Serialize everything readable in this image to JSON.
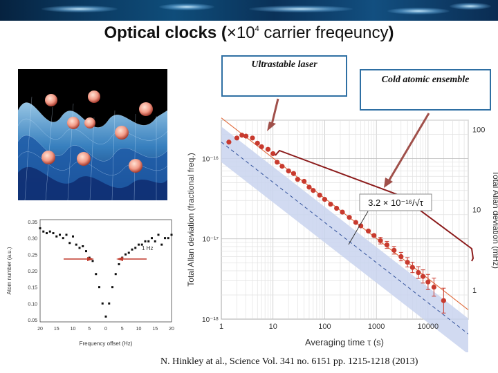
{
  "slide": {
    "title_bold": "Optical clocks",
    "title_paren_open": " (",
    "title_times": "×10",
    "title_exp": "4",
    "title_rest": " carrier freqeuncy",
    "title_paren_close": ")",
    "citation": "N. Hinkley at al., Science Vol. 341 no. 6151 pp. 1215-1218 (2013)"
  },
  "callouts": {
    "laser": "Ultrastable laser",
    "atoms": "Cold atomic ensemble"
  },
  "spectrum_plot": {
    "ytick_labels": [
      "0.35",
      "0.30",
      "0.25",
      "0.20",
      "0.15",
      "0.10",
      "0.05"
    ],
    "xtick_labels": [
      "20",
      "15",
      "10",
      "5",
      "0",
      "5",
      "10",
      "15",
      "20"
    ],
    "ylabel": "Atom number (a.u.)",
    "xlabel": "Frequency offset (Hz)",
    "annotation": "1 Hz"
  },
  "colors": {
    "data_red": "#c83a2e",
    "band_blue": "#c9d3ee",
    "fit_orange": "#e06a3a",
    "dashed_blue": "#30509a",
    "bracket": "#8b1a1a",
    "arrow": "#a0504a",
    "callout_border": "#2e6fa3"
  },
  "chart_data": [
    {
      "type": "scatter",
      "title": "",
      "xlabel": "Averaging time τ (s)",
      "ylabel": "Total Allan deviation (fractional freq.)",
      "ylabel_right": "Total Allan deviation (mHz)",
      "xscale": "log",
      "yscale": "log",
      "xlim": [
        1,
        60000
      ],
      "ylim": [
        1e-18,
        3e-16
      ],
      "xtick_labels": [
        "1",
        "10",
        "100",
        "1000",
        "10000"
      ],
      "ytick_labels": [
        "10⁻¹⁶",
        "10⁻¹⁷",
        "10⁻¹⁸"
      ],
      "right_tick_labels": [
        "100",
        "10",
        "1"
      ],
      "fit_label": "3.2 × 10⁻¹⁶/√τ",
      "series": [
        {
          "name": "Allan deviation",
          "x": [
            1.4,
            2,
            2.5,
            3,
            4,
            5,
            6,
            8,
            10,
            12,
            15,
            20,
            25,
            30,
            40,
            50,
            60,
            80,
            100,
            130,
            170,
            220,
            300,
            400,
            500,
            700,
            900,
            1200,
            1600,
            2200,
            3000,
            4000,
            5000,
            6500,
            8000,
            10000,
            13000,
            20000
          ],
          "y": [
            1.6e-16,
            1.8e-16,
            1.95e-16,
            1.9e-16,
            1.8e-16,
            1.55e-16,
            1.4e-16,
            1.3e-16,
            1.15e-16,
            9e-17,
            8e-17,
            7e-17,
            6.5e-17,
            5.5e-17,
            5.2e-17,
            4.4e-17,
            4e-17,
            3.5e-17,
            3.1e-17,
            2.7e-17,
            2.4e-17,
            2.15e-17,
            1.85e-17,
            1.6e-17,
            1.45e-17,
            1.25e-17,
            1.1e-17,
            9.5e-18,
            8.4e-18,
            7.2e-18,
            6e-18,
            5.1e-18,
            4.4e-18,
            3.8e-18,
            3.4e-18,
            2.9e-18,
            2.5e-18,
            1.7e-18
          ]
        },
        {
          "name": "fit",
          "style": "solid",
          "x": [
            1,
            60000
          ],
          "coef": 3.2e-16
        },
        {
          "name": "expected",
          "style": "dashed",
          "x": [
            1,
            60000
          ],
          "coef": 1.6e-16
        },
        {
          "name": "band",
          "x": [
            1,
            60000
          ],
          "coef_low": 9e-17,
          "coef_high": 2.5e-16
        }
      ]
    },
    {
      "type": "scatter",
      "title": "",
      "xlabel": "Frequency offset (Hz)",
      "ylabel": "Atom number (a.u.)",
      "xlim": [
        -20,
        20
      ],
      "ylim": [
        0.05,
        0.35
      ],
      "series": [
        {
          "name": "spectrum",
          "x": [
            -20,
            -19,
            -18,
            -17,
            -16,
            -15,
            -14,
            -13,
            -12,
            -11,
            -10,
            -9,
            -8,
            -7,
            -6,
            -5,
            -4,
            -3,
            -2,
            -1,
            0,
            1,
            2,
            3,
            4,
            5,
            6,
            7,
            8,
            9,
            10,
            11,
            12,
            13,
            14,
            15,
            16,
            17,
            18,
            19,
            20
          ],
          "y": [
            0.33,
            0.32,
            0.315,
            0.32,
            0.315,
            0.305,
            0.31,
            0.3,
            0.31,
            0.285,
            0.305,
            0.28,
            0.27,
            0.275,
            0.26,
            0.24,
            0.23,
            0.19,
            0.15,
            0.1,
            0.06,
            0.1,
            0.15,
            0.19,
            0.22,
            0.24,
            0.25,
            0.255,
            0.265,
            0.27,
            0.28,
            0.28,
            0.29,
            0.29,
            0.3,
            0.29,
            0.31,
            0.28,
            0.3,
            0.3,
            0.31
          ]
        }
      ]
    }
  ]
}
